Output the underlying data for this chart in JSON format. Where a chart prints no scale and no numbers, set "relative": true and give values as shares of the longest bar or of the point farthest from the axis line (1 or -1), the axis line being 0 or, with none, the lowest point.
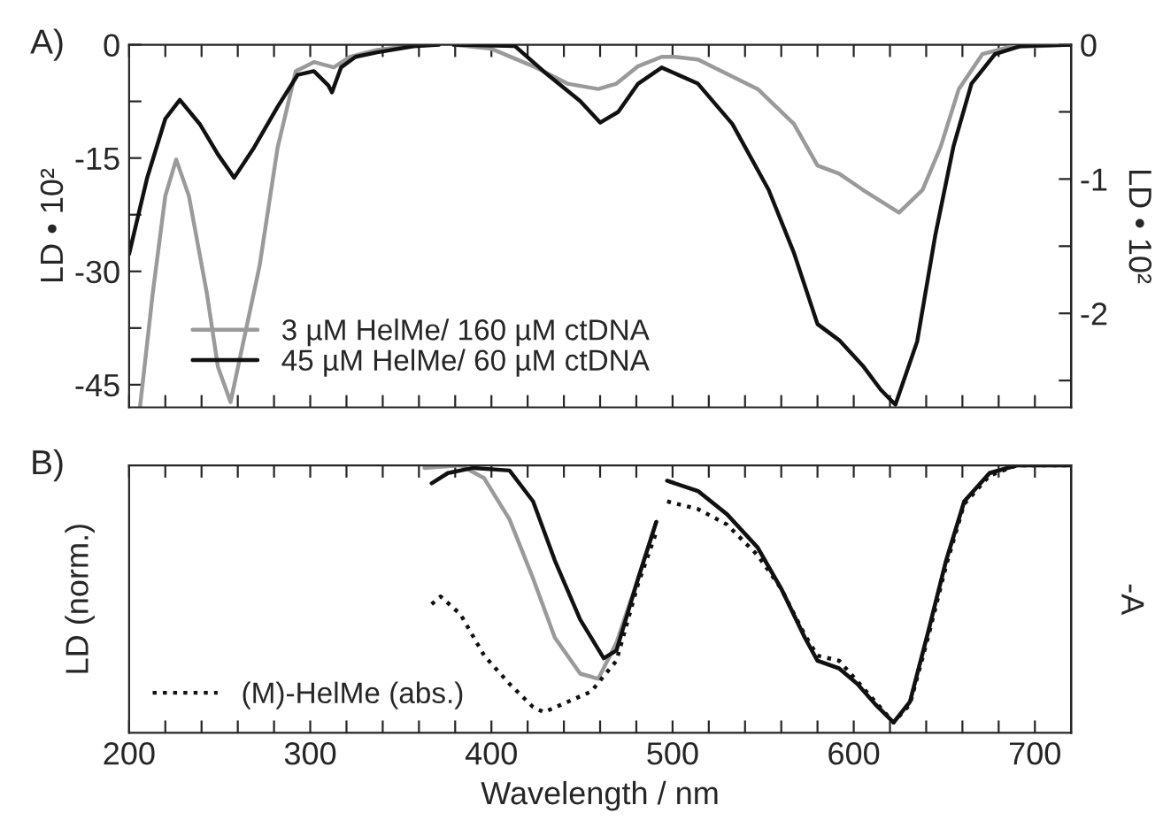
{
  "chart_data": [
    {
      "type": "line",
      "title": "A)",
      "ylabel": "LD • 10²",
      "y2label": "LD • 10²",
      "xlim": [
        200,
        720
      ],
      "xticks": [
        200,
        {
          "value": 220,
          "label": null
        },
        {
          "value": 240,
          "label": null
        },
        {
          "value": 260,
          "label": null
        },
        {
          "value": 280,
          "label": null
        },
        300,
        {
          "value": 320,
          "label": null
        },
        {
          "value": 340,
          "label": null
        },
        {
          "value": 360,
          "label": null
        },
        {
          "value": 380,
          "label": null
        },
        400,
        {
          "value": 420,
          "label": null
        },
        {
          "value": 440,
          "label": null
        },
        {
          "value": 460,
          "label": null
        },
        {
          "value": 480,
          "label": null
        },
        500,
        {
          "value": 520,
          "label": null
        },
        {
          "value": 540,
          "label": null
        },
        {
          "value": 560,
          "label": null
        },
        {
          "value": 580,
          "label": null
        },
        600,
        {
          "value": 620,
          "label": null
        },
        {
          "value": 640,
          "label": null
        },
        {
          "value": 660,
          "label": null
        },
        {
          "value": 680,
          "label": null
        },
        700
      ],
      "ylim": [
        -48,
        0
      ],
      "yticks": [
        0,
        {
          "value": -7.5,
          "label": null
        },
        -15,
        {
          "value": -22.5,
          "label": null
        },
        -30,
        {
          "value": -37.5,
          "label": null
        },
        -45
      ],
      "y2lim": [
        -2.7,
        0
      ],
      "y2ticks": [
        0,
        {
          "value": -0.5,
          "label": null
        },
        -1,
        {
          "value": -1.5,
          "label": null
        },
        -2,
        {
          "value": -2.5,
          "label": null
        }
      ],
      "tick_labels": "y",
      "legend": "bottom",
      "grid": false,
      "marker": "none",
      "series": [
        {
          "name": "3 µM HelMe/ 160 µM ctDNA",
          "color": "#9a9a9a",
          "x": [
            206,
            213,
            220,
            226,
            233,
            243,
            249,
            256,
            272,
            282,
            292,
            302,
            313,
            322,
            337,
            357,
            371
          ],
          "values": [
            -48,
            -33,
            -20,
            -15.2,
            -20,
            -33,
            -42.6,
            -47.3,
            -29.3,
            -13.6,
            -3.5,
            -2.3,
            -3.0,
            -1.6,
            -0.7,
            -0.1,
            0
          ]
        },
        {
          "name": "45 µM HelMe/ 60 µM ctDNA",
          "color": "#111111",
          "x": [
            200,
            210,
            220,
            228,
            239,
            249,
            258,
            269,
            282,
            293,
            302,
            310,
            312,
            317,
            325,
            337,
            357,
            371
          ],
          "values": [
            -27.7,
            -17.6,
            -9.8,
            -7.3,
            -10.5,
            -14.5,
            -17.6,
            -13.6,
            -8.2,
            -4.0,
            -3.5,
            -5.4,
            -6.3,
            -3.0,
            -1.6,
            -1.0,
            -0.2,
            0
          ]
        },
        {
          "axis": "y2",
          "color": "#9a9a9a",
          "x": [
            379,
            400,
            423,
            442,
            459,
            469,
            481,
            494,
            501,
            514,
            547,
            567,
            580,
            592,
            605,
            625,
            638,
            648,
            658,
            671,
            685,
            720
          ],
          "values": [
            0,
            -0.03,
            -0.16,
            -0.29,
            -0.33,
            -0.29,
            -0.16,
            -0.09,
            -0.09,
            -0.11,
            -0.33,
            -0.59,
            -0.9,
            -0.96,
            -1.08,
            -1.25,
            -1.08,
            -0.76,
            -0.33,
            -0.07,
            -0.02,
            0
          ]
        },
        {
          "axis": "y2",
          "color": "#111111",
          "x": [
            379,
            413,
            429,
            449,
            460,
            470,
            481,
            494,
            514,
            533,
            553,
            567,
            580,
            592,
            605,
            615,
            623,
            635,
            645,
            655,
            665,
            678,
            692,
            720
          ],
          "values": [
            0,
            -0.01,
            -0.2,
            -0.42,
            -0.58,
            -0.5,
            -0.29,
            -0.17,
            -0.29,
            -0.59,
            -1.08,
            -1.55,
            -2.08,
            -2.2,
            -2.39,
            -2.57,
            -2.68,
            -2.21,
            -1.42,
            -0.76,
            -0.29,
            -0.07,
            -0.01,
            0
          ]
        }
      ]
    },
    {
      "type": "line",
      "title": "B)",
      "xlabel": "Wavelength / nm",
      "ylabel": "LD (norm.)",
      "y2label": "-A",
      "relative": true,
      "xlim": [
        200,
        720
      ],
      "xticks": [
        200,
        {
          "value": 220,
          "label": null
        },
        {
          "value": 240,
          "label": null
        },
        {
          "value": 260,
          "label": null
        },
        {
          "value": 280,
          "label": null
        },
        300,
        {
          "value": 320,
          "label": null
        },
        {
          "value": 340,
          "label": null
        },
        {
          "value": 360,
          "label": null
        },
        {
          "value": 380,
          "label": null
        },
        400,
        {
          "value": 420,
          "label": null
        },
        {
          "value": 440,
          "label": null
        },
        {
          "value": 460,
          "label": null
        },
        {
          "value": 480,
          "label": null
        },
        500,
        {
          "value": 520,
          "label": null
        },
        {
          "value": 540,
          "label": null
        },
        {
          "value": 560,
          "label": null
        },
        {
          "value": 580,
          "label": null
        },
        600,
        {
          "value": 620,
          "label": null
        },
        {
          "value": 640,
          "label": null
        },
        {
          "value": 660,
          "label": null
        },
        {
          "value": 680,
          "label": null
        },
        700
      ],
      "tick_labels": "x",
      "legend": "bottom left",
      "grid": false,
      "marker": "none",
      "series": [
        {
          "color": "#9a9a9a",
          "x": [
            363,
            383,
            396,
            410,
            423,
            435,
            449,
            459,
            469,
            481,
            491
          ],
          "values": [
            -0.01,
            0,
            -0.05,
            -0.21,
            -0.44,
            -0.67,
            -0.81,
            -0.83,
            -0.69,
            -0.44,
            -0.22
          ]
        },
        {
          "color": "#111111",
          "x": [
            367,
            376,
            390,
            410,
            423,
            435,
            449,
            462,
            469,
            481,
            491
          ],
          "values": [
            -0.07,
            -0.03,
            -0.01,
            -0.02,
            -0.14,
            -0.37,
            -0.6,
            -0.75,
            -0.72,
            -0.44,
            -0.22
          ]
        },
        {
          "name": "(M)-HelMe (abs.)",
          "color": "#111111",
          "line_style": "dotted",
          "x": [
            367,
            372,
            383,
            396,
            410,
            423,
            429,
            442,
            455,
            469,
            481,
            491
          ],
          "values": [
            -0.54,
            -0.51,
            -0.58,
            -0.74,
            -0.85,
            -0.94,
            -0.96,
            -0.92,
            -0.88,
            -0.76,
            -0.46,
            -0.26
          ]
        },
        {
          "color": "#9a9a9a",
          "x": [
            497,
            514,
            530,
            547,
            560,
            573,
            580,
            592,
            602,
            612,
            622,
            631,
            641,
            651,
            661,
            675,
            690,
            720
          ],
          "values": [
            -0.06,
            -0.1,
            -0.19,
            -0.32,
            -0.48,
            -0.67,
            -0.76,
            -0.79,
            -0.85,
            -0.93,
            -1,
            -0.92,
            -0.65,
            -0.37,
            -0.14,
            -0.03,
            0,
            0
          ]
        },
        {
          "color": "#111111",
          "x": [
            497,
            514,
            530,
            547,
            560,
            573,
            580,
            592,
            602,
            612,
            622,
            631,
            641,
            651,
            661,
            675,
            690,
            720
          ],
          "values": [
            -0.06,
            -0.1,
            -0.19,
            -0.32,
            -0.48,
            -0.67,
            -0.76,
            -0.79,
            -0.85,
            -0.93,
            -1,
            -0.92,
            -0.65,
            -0.37,
            -0.14,
            -0.03,
            0,
            0
          ]
        },
        {
          "color": "#111111",
          "line_style": "dotted",
          "x": [
            497,
            514,
            530,
            547,
            560,
            573,
            580,
            592,
            602,
            612,
            622,
            631,
            641,
            651,
            661,
            675,
            690,
            720
          ],
          "values": [
            -0.14,
            -0.17,
            -0.23,
            -0.35,
            -0.48,
            -0.66,
            -0.74,
            -0.76,
            -0.84,
            -0.92,
            -1,
            -0.93,
            -0.67,
            -0.39,
            -0.15,
            -0.04,
            0,
            0
          ]
        }
      ]
    }
  ]
}
